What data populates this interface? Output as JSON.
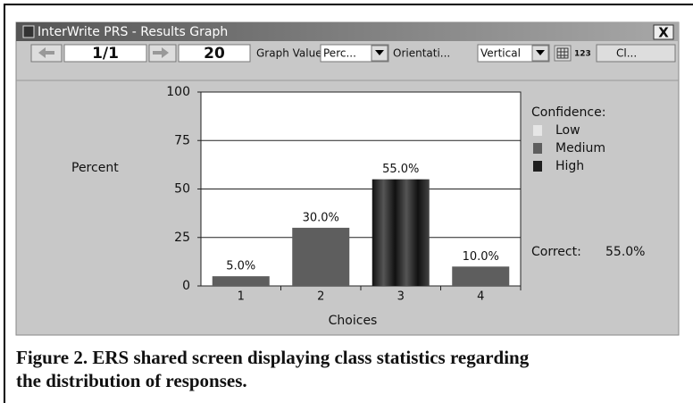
{
  "window": {
    "title": "InterWrite PRS - Results Graph",
    "close": "X"
  },
  "toolbar": {
    "page": "1/1",
    "count": "20",
    "graph_value_label": "Graph Value...",
    "graph_value": "Perc...",
    "orientation_label": "Orientati...",
    "orientation": "Vertical",
    "number_icon": "123",
    "close_button": "Cl..."
  },
  "chart_data": {
    "type": "bar",
    "y_label": "Percent",
    "x_label": "Choices",
    "categories": [
      "1",
      "2",
      "3",
      "4"
    ],
    "values": [
      5,
      30,
      55,
      10
    ],
    "value_labels": [
      "5.0%",
      "30.0%",
      "55.0%",
      "10.0%"
    ],
    "colors": [
      "#5e5e5e",
      "#5e5e5e",
      "#1e1e1e",
      "#5e5e5e"
    ],
    "ylim": [
      0,
      100
    ],
    "yticks": [
      0,
      25,
      50,
      75,
      100
    ],
    "grid": true,
    "legend": {
      "title": "Confidence:",
      "items": [
        {
          "name": "Low",
          "color": "#e6e6e6"
        },
        {
          "name": "Medium",
          "color": "#5e5e5e"
        },
        {
          "name": "High",
          "color": "#1e1e1e"
        }
      ]
    },
    "correct": {
      "label": "Correct:",
      "value": "55.0%"
    }
  },
  "caption": [
    "Figure 2.  ERS shared screen displaying class statistics regarding",
    "the distribution of responses."
  ]
}
